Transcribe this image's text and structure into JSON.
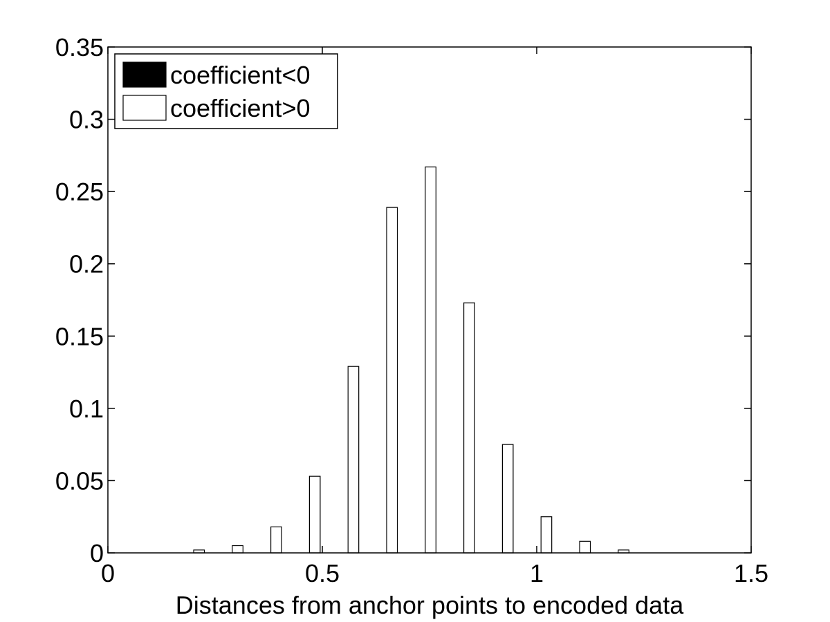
{
  "chart_data": {
    "type": "bar",
    "title": "",
    "xlabel": "Distances from anchor points to encoded data",
    "ylabel": "",
    "xlim": [
      0,
      1.5
    ],
    "ylim": [
      0,
      0.35
    ],
    "xticks": [
      0,
      0.5,
      1,
      1.5
    ],
    "xtick_labels": [
      "0",
      "0.5",
      "1",
      "1.5"
    ],
    "yticks": [
      0,
      0.05,
      0.1,
      0.15,
      0.2,
      0.25,
      0.3,
      0.35
    ],
    "ytick_labels": [
      "0",
      "0.05",
      "0.1",
      "0.15",
      "0.2",
      "0.25",
      "0.3",
      "0.35"
    ],
    "grid": false,
    "legend_position": "top-left",
    "x": [
      0.2,
      0.29,
      0.38,
      0.47,
      0.56,
      0.65,
      0.74,
      0.83,
      0.92,
      1.01,
      1.1,
      1.19
    ],
    "bar_width": 0.025,
    "series": [
      {
        "name": "coefficient<0",
        "color": "#000000",
        "values": [
          0,
          0,
          0,
          0,
          0,
          0,
          0,
          0,
          0,
          0,
          0,
          0
        ]
      },
      {
        "name": "coefficient>0",
        "color": "#ffffff",
        "values": [
          0.002,
          0.005,
          0.018,
          0.053,
          0.129,
          0.239,
          0.267,
          0.173,
          0.075,
          0.025,
          0.008,
          0.002
        ]
      }
    ]
  }
}
